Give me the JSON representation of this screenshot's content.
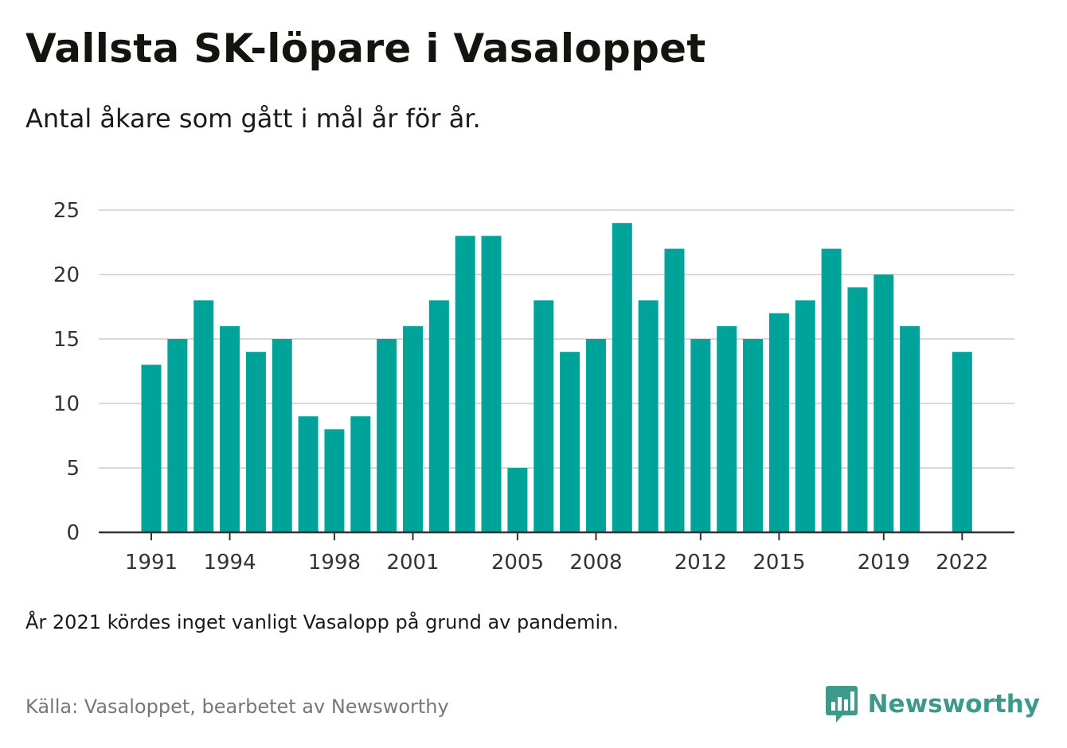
{
  "header": {
    "title": "Vallsta SK-löpare i Vasaloppet",
    "subtitle": "Antal åkare som gått i mål år för år."
  },
  "footer": {
    "note": "År 2021 kördes inget vanligt Vasalopp på grund av pandemin.",
    "source": "Källa: Vasaloppet, bearbetet av Newsworthy",
    "brand": "Newsworthy",
    "brand_icon": "newsworthy-logo-icon"
  },
  "colors": {
    "bar": "#00a39a",
    "grid": "#d9d9d9",
    "axis": "#333333",
    "brand": "#3d9a8b"
  },
  "chart_data": {
    "type": "bar",
    "title": "Vallsta SK-löpare i Vasaloppet",
    "subtitle": "Antal åkare som gått i mål år för år.",
    "xlabel": "",
    "ylabel": "",
    "categories": [
      "1991",
      "1992",
      "1993",
      "1994",
      "1995",
      "1996",
      "1997",
      "1998",
      "1999",
      "2000",
      "2001",
      "2002",
      "2003",
      "2004",
      "2005",
      "2006",
      "2007",
      "2008",
      "2009",
      "2010",
      "2011",
      "2012",
      "2013",
      "2014",
      "2015",
      "2016",
      "2017",
      "2018",
      "2019",
      "2020",
      "2021",
      "2022"
    ],
    "values": [
      13,
      15,
      18,
      16,
      14,
      15,
      9,
      8,
      9,
      15,
      16,
      18,
      23,
      23,
      5,
      18,
      14,
      15,
      24,
      18,
      22,
      15,
      16,
      15,
      17,
      18,
      22,
      19,
      20,
      16,
      null,
      14
    ],
    "x_tick_labels": [
      "1991",
      "1994",
      "1998",
      "2001",
      "2005",
      "2008",
      "2012",
      "2015",
      "2019",
      "2022"
    ],
    "y_ticks": [
      0,
      5,
      10,
      15,
      20,
      25
    ],
    "ylim": [
      0,
      25
    ],
    "grid": true,
    "legend": "none"
  }
}
